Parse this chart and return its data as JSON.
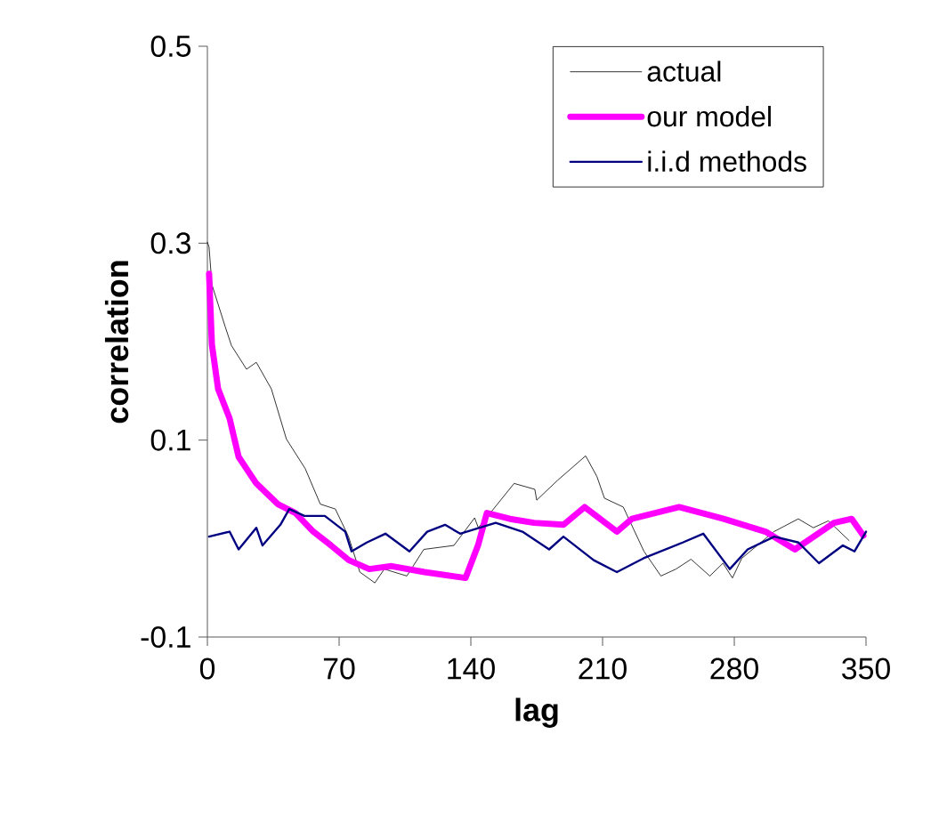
{
  "chart_data": {
    "type": "line",
    "xlabel": "lag",
    "ylabel": "correlation",
    "xlim": [
      0,
      350
    ],
    "xticks": [
      0,
      70,
      140,
      210,
      280,
      350
    ],
    "ylim": [
      -0.1,
      0.5
    ],
    "yticks": [
      -0.1,
      0.1,
      0.3,
      0.5
    ],
    "grid": false,
    "legend": "top",
    "marker": "none",
    "line_style": "solid",
    "series": [
      {
        "name": "actual",
        "color": "#000000",
        "x": [
          0,
          0.9,
          2.4,
          9.5,
          12.8,
          20.8,
          26,
          34,
          42,
          52,
          60,
          68,
          75,
          81,
          89,
          94,
          106,
          115,
          131,
          142,
          144,
          163,
          174,
          175,
          186,
          201,
          207,
          211,
          221,
          232,
          241,
          249,
          257,
          267,
          274,
          279,
          284,
          301,
          314,
          322,
          330,
          341
        ],
        "values": [
          0.301,
          0.296,
          0.258,
          0.215,
          0.196,
          0.172,
          0.179,
          0.152,
          0.101,
          0.071,
          0.035,
          0.03,
          0.002,
          -0.034,
          -0.045,
          -0.031,
          -0.038,
          -0.011,
          -0.007,
          0.021,
          0.011,
          0.056,
          0.05,
          0.039,
          0.059,
          0.084,
          0.063,
          0.041,
          0.032,
          -0.013,
          -0.038,
          -0.031,
          -0.021,
          -0.038,
          -0.025,
          -0.04,
          -0.02,
          0.007,
          0.02,
          0.011,
          0.018,
          -0.002
        ]
      },
      {
        "name": "our model",
        "color": "#ff00ff",
        "x": [
          0.9,
          2.4,
          5.7,
          11.8,
          16.6,
          26,
          37.4,
          46.8,
          56.3,
          65.7,
          75.2,
          86,
          97.9,
          115.4,
          137.2,
          143.8,
          148.5,
          160.8,
          173.6,
          189.2,
          200.5,
          217.6,
          225.6,
          250.7,
          274.3,
          296.6,
          312.2,
          333,
          342.4,
          348.6
        ],
        "values": [
          0.269,
          0.197,
          0.152,
          0.122,
          0.083,
          0.056,
          0.035,
          0.026,
          0.007,
          -0.007,
          -0.022,
          -0.031,
          -0.028,
          -0.034,
          -0.04,
          -0.007,
          0.026,
          0.02,
          0.016,
          0.014,
          0.032,
          0.007,
          0.02,
          0.032,
          0.02,
          0.007,
          -0.011,
          0.016,
          0.02,
          0.003
        ]
      },
      {
        "name": "i.i.d methods",
        "color": "#000080",
        "x": [
          0.9,
          11.8,
          16.6,
          26,
          29.3,
          38.8,
          43.5,
          51.6,
          62.4,
          73.3,
          76.6,
          84.7,
          94.6,
          107.4,
          116.8,
          126.3,
          134.3,
          153.2,
          167.4,
          181.6,
          189.2,
          205.3,
          217.6,
          231.8,
          252.6,
          263.5,
          277.6,
          287.1,
          301.3,
          314.1,
          325,
          337.7,
          343.9,
          350
        ],
        "values": [
          0.002,
          0.007,
          -0.011,
          0.011,
          -0.007,
          0.014,
          0.03,
          0.023,
          0.023,
          0.007,
          -0.013,
          -0.004,
          0.005,
          -0.013,
          0.007,
          0.014,
          0.005,
          0.016,
          0.007,
          -0.011,
          0.002,
          -0.022,
          -0.034,
          -0.02,
          -0.004,
          0.005,
          -0.031,
          -0.011,
          0.002,
          -0.004,
          -0.025,
          -0.007,
          -0.013,
          0.007
        ]
      }
    ]
  }
}
